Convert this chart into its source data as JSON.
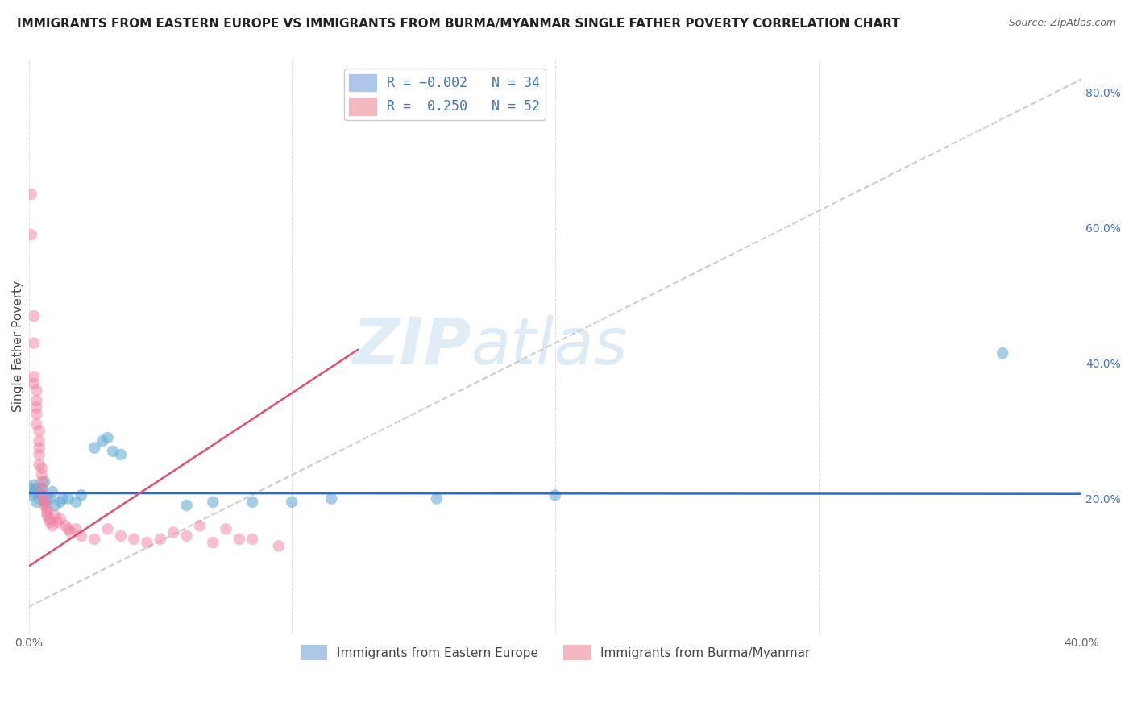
{
  "title": "IMMIGRANTS FROM EASTERN EUROPE VS IMMIGRANTS FROM BURMA/MYANMAR SINGLE FATHER POVERTY CORRELATION CHART",
  "source": "Source: ZipAtlas.com",
  "ylabel": "Single Father Poverty",
  "xlim": [
    0.0,
    0.4
  ],
  "ylim": [
    0.0,
    0.85
  ],
  "y_ticks_right": [
    0.2,
    0.4,
    0.6,
    0.8
  ],
  "y_tick_labels_right": [
    "20.0%",
    "40.0%",
    "60.0%",
    "80.0%"
  ],
  "legend_label_blue": "Immigrants from Eastern Europe",
  "legend_label_pink": "Immigrants from Burma/Myanmar",
  "blue_color": "#6aaed6",
  "pink_color": "#f080a0",
  "trend_blue_color": "#3366cc",
  "trend_pink_color": "#e05070",
  "trend_gray_color": "#c8c8c8",
  "background_color": "#ffffff",
  "grid_color": "#e0e0e0",
  "watermark_zip": "ZIP",
  "watermark_atlas": "atlas",
  "blue_scatter": [
    [
      0.001,
      0.215
    ],
    [
      0.001,
      0.205
    ],
    [
      0.002,
      0.21
    ],
    [
      0.002,
      0.22
    ],
    [
      0.003,
      0.215
    ],
    [
      0.003,
      0.195
    ],
    [
      0.004,
      0.2
    ],
    [
      0.004,
      0.21
    ],
    [
      0.005,
      0.205
    ],
    [
      0.005,
      0.215
    ],
    [
      0.006,
      0.195
    ],
    [
      0.006,
      0.225
    ],
    [
      0.007,
      0.2
    ],
    [
      0.008,
      0.2
    ],
    [
      0.009,
      0.21
    ],
    [
      0.01,
      0.19
    ],
    [
      0.012,
      0.195
    ],
    [
      0.013,
      0.2
    ],
    [
      0.015,
      0.2
    ],
    [
      0.018,
      0.195
    ],
    [
      0.02,
      0.205
    ],
    [
      0.025,
      0.275
    ],
    [
      0.028,
      0.285
    ],
    [
      0.03,
      0.29
    ],
    [
      0.032,
      0.27
    ],
    [
      0.035,
      0.265
    ],
    [
      0.06,
      0.19
    ],
    [
      0.07,
      0.195
    ],
    [
      0.085,
      0.195
    ],
    [
      0.1,
      0.195
    ],
    [
      0.115,
      0.2
    ],
    [
      0.155,
      0.2
    ],
    [
      0.2,
      0.205
    ],
    [
      0.37,
      0.415
    ]
  ],
  "pink_scatter": [
    [
      0.001,
      0.65
    ],
    [
      0.001,
      0.59
    ],
    [
      0.002,
      0.47
    ],
    [
      0.002,
      0.43
    ],
    [
      0.002,
      0.38
    ],
    [
      0.002,
      0.37
    ],
    [
      0.003,
      0.36
    ],
    [
      0.003,
      0.345
    ],
    [
      0.003,
      0.335
    ],
    [
      0.003,
      0.325
    ],
    [
      0.003,
      0.31
    ],
    [
      0.004,
      0.3
    ],
    [
      0.004,
      0.285
    ],
    [
      0.004,
      0.275
    ],
    [
      0.004,
      0.265
    ],
    [
      0.004,
      0.25
    ],
    [
      0.005,
      0.245
    ],
    [
      0.005,
      0.235
    ],
    [
      0.005,
      0.225
    ],
    [
      0.005,
      0.215
    ],
    [
      0.005,
      0.205
    ],
    [
      0.006,
      0.2
    ],
    [
      0.006,
      0.195
    ],
    [
      0.006,
      0.19
    ],
    [
      0.007,
      0.185
    ],
    [
      0.007,
      0.18
    ],
    [
      0.007,
      0.175
    ],
    [
      0.008,
      0.17
    ],
    [
      0.008,
      0.165
    ],
    [
      0.009,
      0.16
    ],
    [
      0.01,
      0.175
    ],
    [
      0.011,
      0.165
    ],
    [
      0.012,
      0.17
    ],
    [
      0.014,
      0.16
    ],
    [
      0.015,
      0.155
    ],
    [
      0.016,
      0.15
    ],
    [
      0.018,
      0.155
    ],
    [
      0.02,
      0.145
    ],
    [
      0.025,
      0.14
    ],
    [
      0.03,
      0.155
    ],
    [
      0.035,
      0.145
    ],
    [
      0.04,
      0.14
    ],
    [
      0.045,
      0.135
    ],
    [
      0.05,
      0.14
    ],
    [
      0.055,
      0.15
    ],
    [
      0.06,
      0.145
    ],
    [
      0.065,
      0.16
    ],
    [
      0.07,
      0.135
    ],
    [
      0.075,
      0.155
    ],
    [
      0.08,
      0.14
    ],
    [
      0.085,
      0.14
    ],
    [
      0.095,
      0.13
    ]
  ],
  "blue_trend_x": [
    0.0,
    0.4
  ],
  "blue_trend_y": [
    0.208,
    0.207
  ],
  "pink_trend_x": [
    0.0,
    0.125
  ],
  "pink_trend_y": [
    0.1,
    0.42
  ],
  "gray_trend_x": [
    0.0,
    0.4
  ],
  "gray_trend_y": [
    0.04,
    0.82
  ]
}
